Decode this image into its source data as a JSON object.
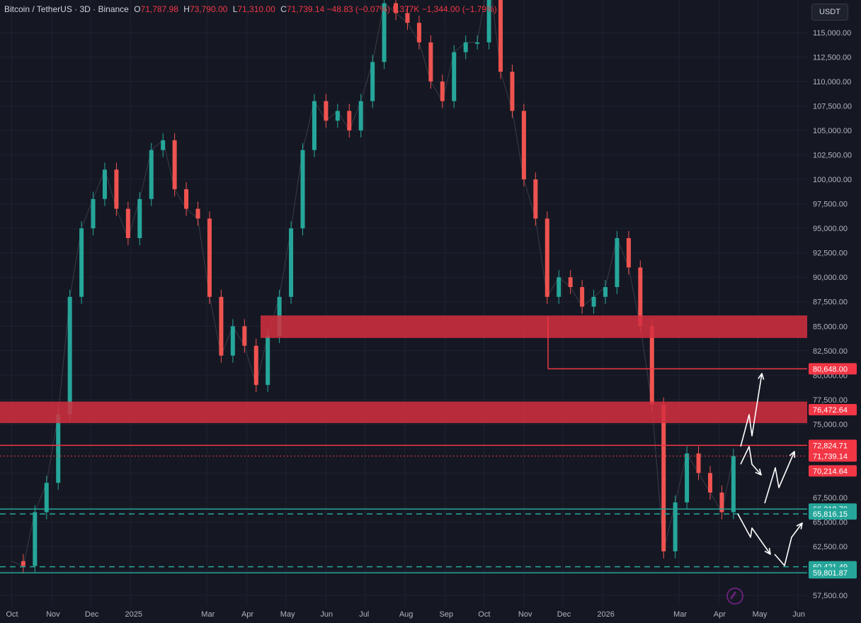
{
  "header": {
    "symbol": "Bitcoin / TetherUS · 3D · Binance",
    "open_label": "O",
    "open": "71,787.98",
    "high_label": "H",
    "high": "73,790.00",
    "low_label": "L",
    "low": "71,310.00",
    "close_label": "C",
    "close": "71,739.14",
    "change": "−48.83 (−0.07%)",
    "volume": "5.377K",
    "change2": "−1,344.00 (−1.79%)"
  },
  "currency_button": "USDT",
  "colors": {
    "background": "#151823",
    "grid": "#1f2330",
    "up": "#26a69a",
    "down": "#ef5350",
    "zone": "#d32f3f",
    "resistance": "#f23645",
    "support": "#26a69a",
    "arrow": "#ffffff",
    "axis_text": "#b2b5be"
  },
  "chart_data": {
    "type": "line",
    "title": "Bitcoin / TetherUS · 3D · Binance",
    "ylim": [
      56000,
      117000
    ],
    "y_ticks": [
      "57,500.00",
      "60,000.00",
      "62,500.00",
      "65,000.00",
      "67,500.00",
      "70,000.00",
      "72,500.00",
      "75,000.00",
      "77,500.00",
      "80,000.00",
      "82,500.00",
      "85,000.00",
      "87,500.00",
      "90,000.00",
      "92,500.00",
      "95,000.00",
      "97,500.00",
      "100,000.00",
      "102,500.00",
      "105,000.00",
      "107,500.00",
      "110,000.00",
      "112,500.00",
      "115,000.00"
    ],
    "x_labels": [
      "Oct",
      "Nov",
      "Dec",
      "2025",
      "Mar",
      "Apr",
      "May",
      "Jun",
      "Jul",
      "Aug",
      "Sep",
      "Oct",
      "Nov",
      "Dec",
      "2026",
      "Mar",
      "Apr",
      "May",
      "Jun"
    ],
    "series": [
      {
        "x": [
          "2024-10-01",
          "2024-10-10",
          "2024-10-19",
          "2024-10-28",
          "2024-11-06",
          "2024-11-15",
          "2024-11-24",
          "2024-12-03",
          "2024-12-12",
          "2024-12-21",
          "2024-12-30",
          "2025-01-08",
          "2025-01-17",
          "2025-01-26",
          "2025-02-04",
          "2025-02-13",
          "2025-02-22",
          "2025-03-03",
          "2025-03-12",
          "2025-03-21",
          "2025-03-30",
          "2025-04-08",
          "2025-04-17",
          "2025-04-26",
          "2025-05-05",
          "2025-05-14",
          "2025-05-23",
          "2025-06-01",
          "2025-06-10",
          "2025-06-19",
          "2025-06-28",
          "2025-07-07",
          "2025-07-16",
          "2025-07-25",
          "2025-08-03",
          "2025-08-12",
          "2025-08-21",
          "2025-08-30",
          "2025-09-08",
          "2025-09-17",
          "2025-09-26",
          "2025-10-05",
          "2025-10-14",
          "2025-10-23",
          "2025-11-01",
          "2025-11-10",
          "2025-11-19",
          "2025-11-28",
          "2025-12-07",
          "2025-12-16",
          "2025-12-25",
          "2026-01-03",
          "2026-01-12",
          "2026-01-21",
          "2026-01-30",
          "2026-02-08",
          "2026-02-17",
          "2026-02-26",
          "2026-03-07",
          "2026-03-16",
          "2026-03-25",
          "2026-04-03",
          "2026-04-12"
        ],
        "values": [
          61000,
          60500,
          66000,
          69000,
          76000,
          88000,
          95000,
          98000,
          101000,
          97000,
          94000,
          98000,
          103000,
          104000,
          99000,
          97000,
          96000,
          88000,
          82000,
          85000,
          83000,
          79000,
          84000,
          88000,
          95000,
          103000,
          108000,
          106000,
          107000,
          105000,
          108000,
          112000,
          118000,
          117000,
          116000,
          114000,
          110000,
          108000,
          113000,
          114000,
          114000,
          121000,
          111000,
          107000,
          100000,
          96000,
          88000,
          90000,
          89000,
          87000,
          88000,
          89000,
          94000,
          91000,
          85000,
          77000,
          62000,
          67000,
          72000,
          70000,
          68000,
          66000,
          71739
        ]
      }
    ],
    "zones": [
      {
        "name": "resistance-zone-upper",
        "from": 83800,
        "to": 86100
      },
      {
        "name": "resistance-zone-lower",
        "from": 75100,
        "to": 77300
      }
    ],
    "levels": {
      "red_level_1": "80,648.00",
      "red_level_2": "76,472.64",
      "red_level_3": "72,824.71",
      "current_price": "71,739.14",
      "red_level_4": "70,214.64",
      "green_level_1": "66,318.70",
      "green_level_2": "65,816.15",
      "green_level_3": "60,421.49",
      "green_level_4": "59,801.87"
    },
    "grid": true
  }
}
